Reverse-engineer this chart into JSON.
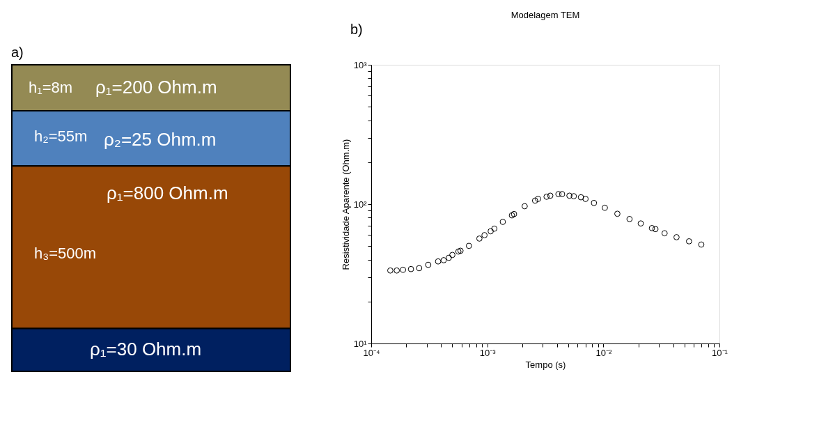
{
  "chart_data": [
    {
      "type": "other",
      "title": "a)",
      "colors": [
        "#948a54",
        "#4f81bd",
        "#984807",
        "#002060"
      ],
      "annotations": [
        "h₁=8m",
        "ρ₁=200 Ohm.m",
        "h₂=55m",
        "ρ₂=25 Ohm.m",
        "ρ₁=800 Ohm.m",
        "h₃=500m",
        "ρ₁=30 Ohm.m"
      ]
    },
    {
      "type": "scatter",
      "title": "Modelagem TEM",
      "xlabel": "Tempo (s)",
      "ylabel": "Resistividade Aparente (Ohm.m)",
      "annotations": [
        "b)"
      ],
      "log": "xy",
      "marker": "circle",
      "grid": false,
      "xlim": [
        0.0001,
        0.1
      ],
      "ylim": [
        10,
        1000
      ],
      "xticks": [
        {
          "value": 0.0001,
          "label": "10⁻⁴"
        },
        {
          "value": 0.0002,
          "label": null
        },
        {
          "value": 0.0003,
          "label": null
        },
        {
          "value": 0.0004,
          "label": null
        },
        {
          "value": 0.0005,
          "label": null
        },
        {
          "value": 0.0006,
          "label": null
        },
        {
          "value": 0.0007,
          "label": null
        },
        {
          "value": 0.0008,
          "label": null
        },
        {
          "value": 0.0009,
          "label": null
        },
        {
          "value": 0.001,
          "label": "10⁻³"
        },
        {
          "value": 0.002,
          "label": null
        },
        {
          "value": 0.003,
          "label": null
        },
        {
          "value": 0.004,
          "label": null
        },
        {
          "value": 0.005,
          "label": null
        },
        {
          "value": 0.006,
          "label": null
        },
        {
          "value": 0.007,
          "label": null
        },
        {
          "value": 0.008,
          "label": null
        },
        {
          "value": 0.009,
          "label": null
        },
        {
          "value": 0.01,
          "label": "10⁻²"
        },
        {
          "value": 0.02,
          "label": null
        },
        {
          "value": 0.03,
          "label": null
        },
        {
          "value": 0.04,
          "label": null
        },
        {
          "value": 0.05,
          "label": null
        },
        {
          "value": 0.06,
          "label": null
        },
        {
          "value": 0.07,
          "label": null
        },
        {
          "value": 0.08,
          "label": null
        },
        {
          "value": 0.09,
          "label": null
        },
        {
          "value": 0.1,
          "label": "10⁻¹"
        }
      ],
      "yticks": [
        {
          "value": 10,
          "label": "10¹"
        },
        {
          "value": 20,
          "label": null
        },
        {
          "value": 30,
          "label": null
        },
        {
          "value": 40,
          "label": null
        },
        {
          "value": 50,
          "label": null
        },
        {
          "value": 60,
          "label": null
        },
        {
          "value": 70,
          "label": null
        },
        {
          "value": 80,
          "label": null
        },
        {
          "value": 90,
          "label": null
        },
        {
          "value": 100,
          "label": "10²"
        },
        {
          "value": 200,
          "label": null
        },
        {
          "value": 300,
          "label": null
        },
        {
          "value": 400,
          "label": null
        },
        {
          "value": 500,
          "label": null
        },
        {
          "value": 600,
          "label": null
        },
        {
          "value": 700,
          "label": null
        },
        {
          "value": 800,
          "label": null
        },
        {
          "value": 900,
          "label": null
        },
        {
          "value": 1000,
          "label": "10³"
        }
      ],
      "x": [
        0.000146,
        0.000166,
        0.000188,
        0.00022,
        0.000259,
        0.00031,
        0.000377,
        0.000421,
        0.000466,
        0.0005,
        0.000564,
        0.000588,
        0.000695,
        0.000855,
        0.000946,
        0.00107,
        0.00115,
        0.00136,
        0.00163,
        0.0017,
        0.0021,
        0.00258,
        0.00274,
        0.00324,
        0.00349,
        0.0041,
        0.00441,
        0.0051,
        0.00556,
        0.00641,
        0.00702,
        0.0083,
        0.0103,
        0.0132,
        0.0168,
        0.021,
        0.0262,
        0.0281,
        0.0337,
        0.0427,
        0.0547,
        0.0698
      ],
      "series": [
        {
          "color": "#000000",
          "values": [
            33.4,
            33.4,
            33.8,
            34.2,
            34.7,
            36.7,
            38.8,
            39.6,
            41.2,
            43.2,
            45.7,
            46.3,
            50.2,
            56.6,
            59.9,
            63.9,
            66.7,
            74.6,
            83.1,
            84.9,
            96.6,
            106,
            109,
            113,
            115,
            118,
            118,
            115,
            114,
            112,
            109,
            102,
            94.2,
            85.3,
            78.2,
            72.7,
            67.3,
            66.2,
            61.8,
            57.9,
            54.1,
            51.3
          ]
        }
      ]
    }
  ]
}
